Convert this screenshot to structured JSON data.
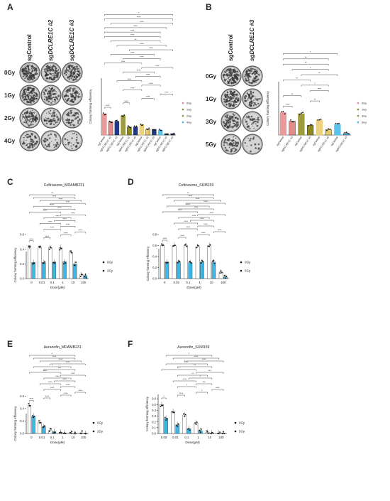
{
  "panels": {
    "A": {
      "letter": "A",
      "col_labels": [
        "sgControl",
        "sgDCLRE1C #2",
        "sgDCLRE1C #3"
      ],
      "row_labels": [
        "0Gy",
        "1Gy",
        "2Gy",
        "4Gy"
      ]
    },
    "B": {
      "letter": "B",
      "col_labels": [
        "sgControl",
        "sgDCLRE1C #3"
      ],
      "row_labels": [
        "0Gy",
        "1Gy",
        "3Gy",
        "5Gy"
      ]
    },
    "C": {
      "letter": "C"
    },
    "D": {
      "letter": "D"
    },
    "E": {
      "letter": "E"
    },
    "F": {
      "letter": "F"
    }
  },
  "colors": {
    "accent_blue": "#3db8e6",
    "olive": "#8c8a1e",
    "tan": "#e8c96a",
    "salmon": "#e58a8a",
    "navy": "#1f3a8a",
    "white": "#ffffff",
    "black": "#111111"
  },
  "chart_data": [
    {
      "id": "A",
      "type": "bar",
      "ylabel": "Colony forming efficiency",
      "categories": [
        "sgControl",
        "sgDCLRE1C #2",
        "sgDCLRE1C #3",
        "sgControl",
        "sgDCLRE1C #2",
        "sgDCLRE1C #3",
        "sgControl",
        "sgDCLRE1C #2",
        "sgDCLRE1C #3",
        "sgControl",
        "sgDCLRE1C #2",
        "sgDCLRE1C #3"
      ],
      "groups": [
        "0Gy",
        "1Gy",
        "2Gy",
        "4Gy"
      ],
      "legend": [
        "0Gy",
        "1Gy",
        "2Gy",
        "4Gy"
      ],
      "values": [
        0.45,
        0.28,
        0.29,
        0.41,
        0.17,
        0.17,
        0.22,
        0.12,
        0.12,
        0.1,
        0.03,
        0.03
      ],
      "ylim": [
        0,
        1.2
      ],
      "significance": [
        "****",
        "****",
        "****",
        "****",
        "****",
        "****",
        "****",
        "****",
        "****",
        "****",
        "****",
        "****",
        "****",
        "****",
        "****",
        "**",
        "****",
        "****",
        "****",
        "****",
        "****",
        "*"
      ]
    },
    {
      "id": "B",
      "type": "bar",
      "ylabel": "Colony forming efficiency",
      "categories": [
        "sgControl",
        "sgDCLRE1C #3",
        "sgControl",
        "sgDCLRE1C #3",
        "sgControl",
        "sgDCLRE1C #3",
        "sgControl",
        "sgDCLRE1C #3"
      ],
      "groups": [
        "0Gy",
        "1Gy",
        "3Gy",
        "5Gy"
      ],
      "legend": [
        "0Gy",
        "1Gy",
        "3Gy",
        "5Gy"
      ],
      "values": [
        0.42,
        0.26,
        0.4,
        0.18,
        0.28,
        0.1,
        0.2,
        0.03
      ],
      "ylim": [
        0,
        1.0
      ],
      "significance": [
        "****",
        "**",
        "**",
        "****",
        "*",
        "**",
        "**",
        "*",
        "**",
        "**",
        "*"
      ]
    },
    {
      "id": "C",
      "type": "bar",
      "title": "Ceftriaxone_MDAMB231",
      "xlabel": "Dose(μM)",
      "ylabel": "Colony forming efficiency",
      "categories": [
        "0",
        "0.01",
        "0.1",
        "1",
        "10",
        "100"
      ],
      "series": [
        {
          "name": "0Gy",
          "values": [
            0.42,
            0.42,
            0.42,
            0.42,
            0.35,
            0.05
          ]
        },
        {
          "name": "2Gy",
          "values": [
            0.22,
            0.22,
            0.22,
            0.23,
            0.2,
            0.04
          ]
        }
      ],
      "ylim": [
        0,
        1.2
      ],
      "yticks": [
        0.0,
        0.2,
        0.4,
        0.6
      ],
      "significance": [
        "****",
        "****",
        "****",
        "****",
        "****",
        "****",
        "****",
        "****",
        "****",
        "****",
        "****",
        "****",
        "****",
        "****",
        "****",
        "****",
        "**"
      ]
    },
    {
      "id": "D",
      "type": "bar",
      "title": "Ceftriaxone_SUM159",
      "xlabel": "Dose(μM)",
      "ylabel": "Colony forming efficiency",
      "categories": [
        "0",
        "0.01",
        "0.1",
        "1",
        "10",
        "100"
      ],
      "series": [
        {
          "name": "0Gy",
          "values": [
            0.6,
            0.6,
            0.6,
            0.58,
            0.6,
            0.12
          ]
        },
        {
          "name": "5Gy",
          "values": [
            0.3,
            0.3,
            0.29,
            0.3,
            0.3,
            0.03
          ]
        }
      ],
      "ylim": [
        0,
        1.6
      ],
      "yticks": [
        0.0,
        0.2,
        0.4,
        0.6,
        0.8
      ],
      "significance": [
        "****",
        "****",
        "****",
        "****",
        "****",
        "****",
        "****",
        "****",
        "****",
        "****",
        "****",
        "****",
        "****",
        "****",
        "****",
        "****",
        "**"
      ]
    },
    {
      "id": "E",
      "type": "bar",
      "title": "Auranofin_MDAMB231",
      "xlabel": "Dose(μM)",
      "ylabel": "Colony forming efficiency",
      "categories": [
        "0",
        "0.01",
        "0.1",
        "1",
        "10",
        "100"
      ],
      "series": [
        {
          "name": "0Gy",
          "values": [
            0.45,
            0.18,
            0.05,
            0.02,
            0.01,
            0.01
          ]
        },
        {
          "name": "2Gy",
          "values": [
            0.28,
            0.11,
            0.03,
            0.01,
            0.0,
            0.0
          ]
        }
      ],
      "ylim": [
        0,
        1.3
      ],
      "yticks": [
        0.0,
        0.2,
        0.4,
        0.6
      ],
      "significance": [
        "****",
        "****",
        "****",
        "****",
        "****",
        "****",
        "****",
        "****",
        "****",
        "****",
        "****",
        "***",
        "*",
        "****",
        "****",
        "****",
        "*"
      ]
    },
    {
      "id": "F",
      "type": "bar",
      "title": "Auronofin_SUM159",
      "xlabel": "Dose(μM)",
      "ylabel": "Colony forming efficiency",
      "categories": [
        "0.00",
        "0.01",
        "0.1",
        "1",
        "10",
        "100"
      ],
      "series": [
        {
          "name": "0Gy",
          "values": [
            0.5,
            0.38,
            0.32,
            0.18,
            0.02,
            0.01
          ]
        },
        {
          "name": "5Gy",
          "values": [
            0.26,
            0.15,
            0.08,
            0.05,
            0.01,
            0.01
          ]
        }
      ],
      "ylim": [
        0,
        1.4
      ],
      "yticks": [
        0.0,
        0.1,
        0.2,
        0.3,
        0.4,
        0.5,
        0.6
      ],
      "significance": [
        "*",
        "****",
        "*",
        "****",
        "*",
        "***",
        "****",
        "*",
        "**",
        "***",
        "*",
        "**",
        "***",
        "****",
        "****",
        "*"
      ]
    }
  ]
}
